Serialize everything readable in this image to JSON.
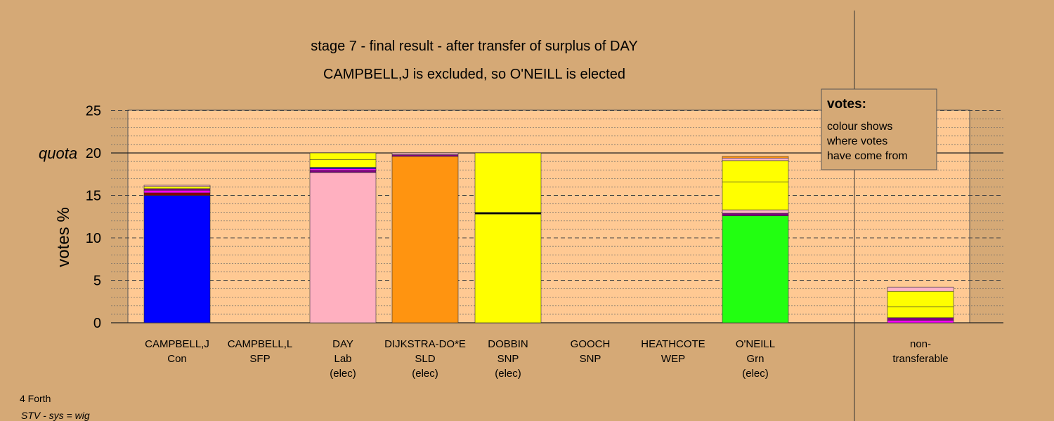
{
  "chart_data": {
    "type": "bar",
    "stacked": true,
    "title": "stage 7 - final result - after transfer of surplus of DAY",
    "subtitle": "CAMPBELL,J is excluded, so O'NEILL is elected",
    "ylabel": "votes %",
    "ylim": [
      0,
      25
    ],
    "yticks": [
      0,
      5,
      10,
      15,
      20,
      25
    ],
    "quota": 20,
    "quota_label": "quota",
    "grid": true,
    "legend_placement": "top-right",
    "categories": [
      {
        "name": "CAMPBELL,J",
        "party": "Con",
        "status": ""
      },
      {
        "name": "CAMPBELL,L",
        "party": "SFP",
        "status": ""
      },
      {
        "name": "DAY",
        "party": "Lab",
        "status": "(elec)"
      },
      {
        "name": "DIJKSTRA-DO*E",
        "party": "SLD",
        "status": "(elec)"
      },
      {
        "name": "DOBBIN",
        "party": "SNP",
        "status": "(elec)"
      },
      {
        "name": "GOOCH",
        "party": "SNP",
        "status": ""
      },
      {
        "name": "HEATHCOTE",
        "party": "WEP",
        "status": ""
      },
      {
        "name": "O'NEILL",
        "party": "Grn",
        "status": "(elec)"
      },
      {
        "name": "non-",
        "party": "transferable",
        "status": ""
      }
    ],
    "stacks": [
      [
        {
          "v": 15.0,
          "c": "#0000ff"
        },
        {
          "v": 0.3,
          "c": "#8b0000"
        },
        {
          "v": 0.3,
          "c": "#ff00ff"
        },
        {
          "v": 0.2,
          "c": "#800080"
        },
        {
          "v": 0.25,
          "c": "#ffff00"
        },
        {
          "v": 0.15,
          "c": "#ffb3c6"
        }
      ],
      [],
      [
        {
          "v": 17.7,
          "c": "#ffb0c0"
        },
        {
          "v": 0.25,
          "c": "#800080"
        },
        {
          "v": 0.2,
          "c": "#ff00ff"
        },
        {
          "v": 0.15,
          "c": "#0000ff"
        },
        {
          "v": 0.9,
          "c": "#ffff00"
        },
        {
          "v": 0.8,
          "c": "#ffff00"
        }
      ],
      [
        {
          "v": 19.6,
          "c": "#ff9410"
        },
        {
          "v": 0.2,
          "c": "#800080"
        },
        {
          "v": 0.2,
          "c": "#ffb3c6"
        }
      ],
      [
        {
          "v": 12.8,
          "c": "#ffff00"
        },
        {
          "v": 0.2,
          "c": "#000000"
        },
        {
          "v": 7.0,
          "c": "#ffff00"
        }
      ],
      [],
      [],
      [
        {
          "v": 12.6,
          "c": "#22ff11"
        },
        {
          "v": 0.3,
          "c": "#800080"
        },
        {
          "v": 0.4,
          "c": "#ffb3c6"
        },
        {
          "v": 3.3,
          "c": "#ffff00"
        },
        {
          "v": 2.5,
          "c": "#ffff00"
        },
        {
          "v": 0.3,
          "c": "#ffb3c6"
        },
        {
          "v": 0.2,
          "c": "#ff9410"
        }
      ],
      []
    ],
    "nontransferable": [
      {
        "v": 0.3,
        "c": "#ff00ff"
      },
      {
        "v": 0.3,
        "c": "#800080"
      },
      {
        "v": 1.3,
        "c": "#ffff00"
      },
      {
        "v": 1.8,
        "c": "#ffff00"
      },
      {
        "v": 0.5,
        "c": "#ffb3c6"
      }
    ]
  },
  "legend": {
    "title": "votes:",
    "lines": [
      "colour shows",
      "where votes",
      "have come from"
    ]
  },
  "footer": {
    "line1": "4 Forth",
    "line2": "STV - sys = wig"
  },
  "colors": {
    "background": "#d5a976",
    "plot_area": "#ffc993"
  }
}
